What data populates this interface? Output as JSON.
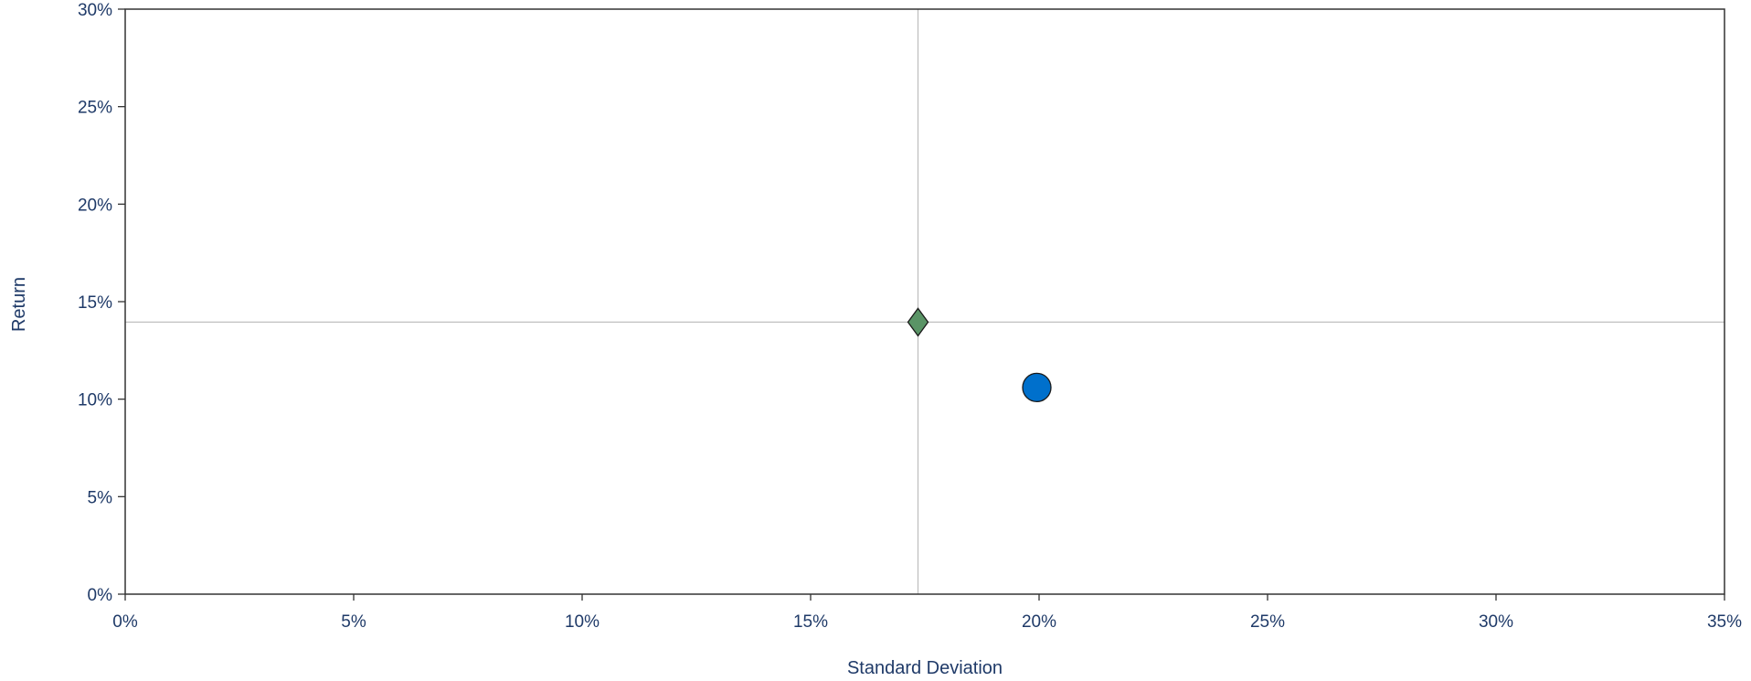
{
  "chart_data": {
    "type": "scatter",
    "title": "",
    "xlabel": "Standard Deviation",
    "ylabel": "Return",
    "xlim": [
      0,
      35
    ],
    "ylim": [
      0,
      30
    ],
    "x_ticks": [
      0,
      5,
      10,
      15,
      20,
      25,
      30,
      35
    ],
    "y_ticks": [
      0,
      5,
      10,
      15,
      20,
      25,
      30
    ],
    "x_tick_labels": [
      "0%",
      "5%",
      "10%",
      "15%",
      "20%",
      "25%",
      "30%",
      "35%"
    ],
    "y_tick_labels": [
      "0%",
      "5%",
      "10%",
      "15%",
      "20%",
      "25%",
      "30%"
    ],
    "grid": false,
    "legend": "none",
    "reference_lines": {
      "x": 17.35,
      "y": 13.95,
      "color": "#c0c0c0"
    },
    "points": [
      {
        "x": 17.35,
        "y": 13.95,
        "marker": "diamond",
        "color": "#5a9466"
      },
      {
        "x": 19.95,
        "y": 10.6,
        "marker": "circle",
        "color": "#0070cc"
      }
    ],
    "colors": {
      "text": "#1f3a68",
      "axis": "#333333",
      "marker_stroke": "#1a1a1a"
    }
  }
}
